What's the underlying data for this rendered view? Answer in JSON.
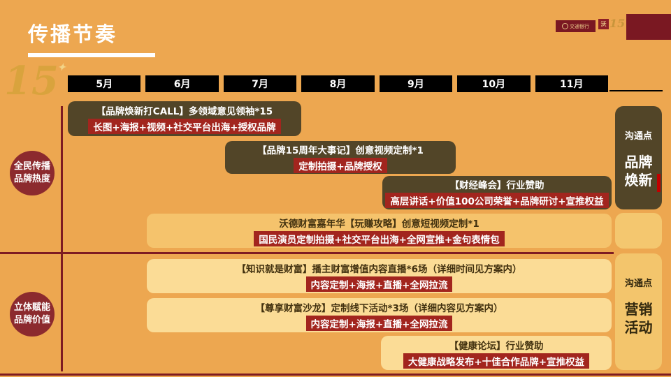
{
  "slide": {
    "title": "传播节奏"
  },
  "header": {
    "bank_logo_text": "交通银行",
    "emblem_text": "沃",
    "anniversary_mark": "15",
    "watermark": "15"
  },
  "timeline": {
    "months": [
      "5月",
      "6月",
      "7月",
      "8月",
      "9月",
      "10月",
      "11月"
    ]
  },
  "sections": [
    {
      "line1": "全民传播",
      "line2": "品牌热度"
    },
    {
      "line1": "立体赋能",
      "line2": "品牌价值"
    }
  ],
  "events": [
    {
      "title": "【品牌焕新打CALL】多领域意见领袖*15",
      "tag": "长图+海报+视频+社交平台出海+授权品牌"
    },
    {
      "title": "【品牌15周年大事记】创意视频定制*1",
      "tag": "定制拍摄+品牌授权"
    },
    {
      "title": "【财经峰会】行业赞助",
      "tag": "高层讲话+价值100公司荣誉+品牌研讨+宣推权益"
    },
    {
      "title": "沃德财富嘉年华【玩赚攻略】创意短视频定制*1",
      "tag": "国民演员定制拍摄+社交平台出海+全网宣推+金句表情包"
    },
    {
      "title": "【知识就是财富】播主财富增值内容直播*6场（详细时间见方案内）",
      "tag": "内容定制+海报+直播+全网拉流"
    },
    {
      "title": "【尊享财富沙龙】定制线下活动*3场（详细内容见方案内）",
      "tag": "内容定制+海报+直播+全网拉流"
    },
    {
      "title": "【健康论坛】行业赞助",
      "tag": "大健康战略发布+十佳合作品牌+宣推权益"
    }
  ],
  "sidebar": {
    "top": {
      "kicker": "沟通点",
      "line1": "品牌",
      "line2": "焕新"
    },
    "bottom": {
      "kicker": "沟通点",
      "line1": "营销",
      "line2": "活动"
    }
  },
  "colors": {
    "background": "#EDA750",
    "dark_box": "#524528",
    "highlight_red": "#A2251E",
    "maroon_line": "#7E1B22",
    "circle_maroon": "#8C2A2E",
    "gold_box": "#F5C36C",
    "cream_box": "#FBDC96",
    "month_black": "#000000",
    "title_white": "#FFFFFF"
  }
}
